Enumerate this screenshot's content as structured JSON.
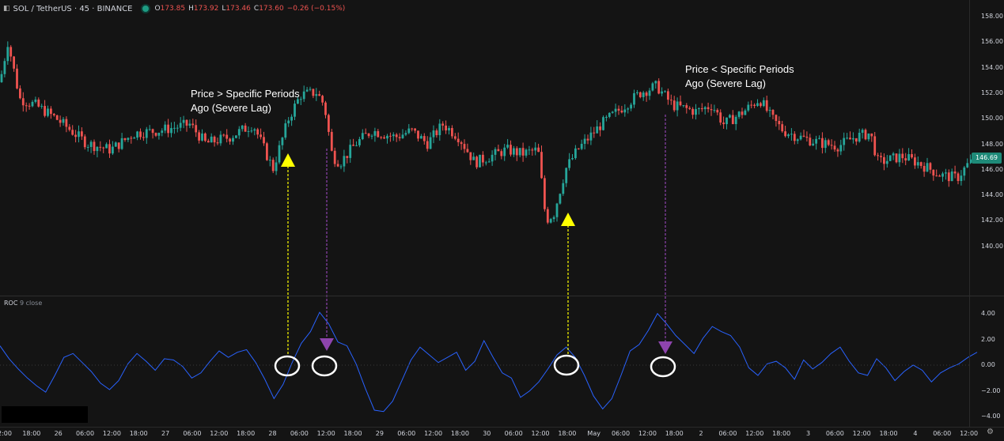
{
  "header": {
    "symbol": "SOL / TetherUS · 45 · BINANCE",
    "open_label": "O",
    "open": "173.85",
    "high_label": "H",
    "high": "173.92",
    "low_label": "L",
    "low": "173.46",
    "close_label": "C",
    "close": "173.60",
    "change": "−0.26 (−0.15%)"
  },
  "price_axis": {
    "ticks": [
      "158.00",
      "156.00",
      "154.00",
      "152.00",
      "150.00",
      "148.00",
      "146.00",
      "144.00",
      "142.00",
      "140.00"
    ],
    "current_price": "146.69"
  },
  "indicator": {
    "name": "ROC",
    "params": "9 close",
    "ticks": [
      "4.00",
      "2.00",
      "0.00",
      "−2.00",
      "−4.00"
    ]
  },
  "time_axis": {
    "labels": [
      "2:00",
      "18:00",
      "26",
      "06:00",
      "12:00",
      "18:00",
      "27",
      "06:00",
      "12:00",
      "18:00",
      "28",
      "06:00",
      "12:00",
      "18:00",
      "29",
      "06:00",
      "12:00",
      "18:00",
      "30",
      "06:00",
      "12:00",
      "18:00",
      "May",
      "06:00",
      "12:00",
      "18:00",
      "2",
      "06:00",
      "12:00",
      "18:00",
      "3",
      "06:00",
      "12:00",
      "18:00",
      "4",
      "06:00",
      "12:00"
    ]
  },
  "annotations": {
    "left": [
      "Price > Specific Periods",
      "Ago (Severe Lag)"
    ],
    "right": [
      "Price < Specific Periods",
      "Ago (Severe Lag)"
    ]
  },
  "colors": {
    "up": "#26a69a",
    "down": "#ef5350",
    "roc": "#2962ff",
    "arrow_up": "#ffff00",
    "arrow_down": "#8e44ad"
  },
  "chart_data": {
    "type": "line",
    "title": "",
    "series": [
      {
        "values": [
          1.5,
          0.5,
          -0.3,
          -1.0,
          -1.6,
          -2.1,
          -0.8,
          0.6,
          0.9,
          0.2,
          -0.5,
          -1.4,
          -1.9,
          -1.2,
          0.1,
          0.9,
          0.3,
          -0.4,
          0.5,
          0.4,
          -0.1,
          -1.0,
          -0.6,
          0.3,
          1.1,
          0.6,
          1.0,
          1.2,
          0.2,
          -1.1,
          -2.6,
          -1.5,
          0.2,
          1.7,
          2.6,
          4.1,
          3.2,
          1.8,
          1.5,
          0.1,
          -1.8,
          -3.5,
          -3.6,
          -2.8,
          -1.2,
          0.4,
          1.4,
          0.8,
          0.2,
          0.6,
          1.0,
          -0.4,
          0.3,
          1.9,
          0.6,
          -0.6,
          -1.0,
          -2.5,
          -2.0,
          -1.3,
          -0.3,
          0.8,
          1.4,
          0.6,
          -0.8,
          -2.4,
          -3.4,
          -2.6,
          -0.8,
          1.1,
          1.6,
          2.7,
          4.0,
          3.2,
          2.3,
          1.6,
          0.9,
          2.1,
          3.0,
          2.6,
          2.3,
          1.4,
          -0.2,
          -0.8,
          0.1,
          0.3,
          -0.2,
          -1.1,
          0.4,
          -0.3,
          0.2,
          0.9,
          1.4,
          0.3,
          -0.6,
          -0.8,
          0.5,
          -0.2,
          -1.2,
          -0.5,
          0.0,
          -0.4,
          -1.3,
          -0.6,
          -0.2,
          0.1,
          0.6,
          1.0
        ]
      }
    ]
  }
}
